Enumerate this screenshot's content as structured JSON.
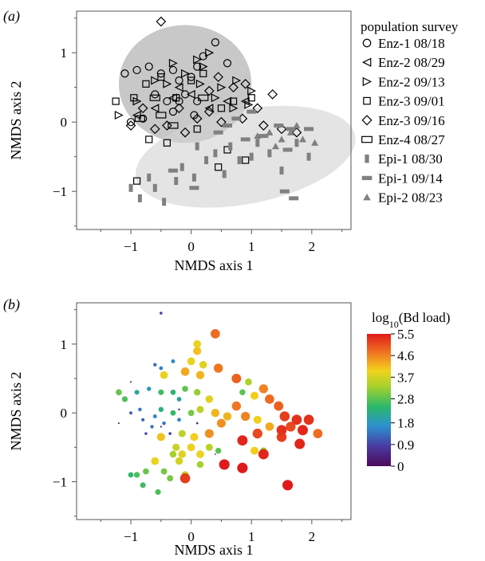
{
  "chart_data": [
    {
      "panel_label": "(a)",
      "type": "scatter",
      "xlabel": "NMDS axis 1",
      "ylabel": "NMDS axis 2",
      "xlim": [
        -1.9,
        2.65
      ],
      "ylim": [
        -1.55,
        1.6
      ],
      "x_ticks": [
        -1,
        0,
        1,
        2
      ],
      "x_tick_labels": [
        "−1",
        "0",
        "1",
        "2"
      ],
      "y_ticks": [
        -1,
        0,
        1
      ],
      "y_tick_labels": [
        "−1",
        "0",
        "1"
      ],
      "legend_title": "population survey",
      "legend_position": "right",
      "ellipses": [
        {
          "group": "enzootic",
          "center": [
            -0.1,
            0.55
          ],
          "rx": 1.1,
          "ry": 0.85,
          "angle_deg": 0,
          "color": "#9a9a9a",
          "opacity": 0.55
        },
        {
          "group": "epizootic",
          "center": [
            0.9,
            -0.5
          ],
          "rx": 1.85,
          "ry": 0.68,
          "angle_deg": 11,
          "color": "#d2d2d2",
          "opacity": 0.6
        }
      ],
      "series": [
        {
          "name": "Enz-1 08/18",
          "marker": "circle",
          "points": [
            [
              -1.1,
              0.7
            ],
            [
              -0.9,
              0.75
            ],
            [
              -0.7,
              0.8
            ],
            [
              -0.5,
              0.7
            ],
            [
              -0.3,
              0.75
            ],
            [
              -0.2,
              0.6
            ],
            [
              -0.1,
              0.4
            ],
            [
              0.0,
              0.65
            ],
            [
              0.1,
              0.8
            ],
            [
              0.2,
              0.95
            ],
            [
              0.4,
              1.15
            ],
            [
              0.6,
              0.85
            ],
            [
              -0.6,
              0.4
            ],
            [
              -0.4,
              0.3
            ],
            [
              -0.2,
              0.3
            ],
            [
              0.1,
              0.3
            ],
            [
              -1.0,
              0.0
            ],
            [
              -0.8,
              0.05
            ],
            [
              -0.3,
              0.15
            ],
            [
              0.05,
              0.1
            ]
          ]
        },
        {
          "name": "Enz-2 08/29",
          "marker": "tri-left",
          "points": [
            [
              -0.9,
              0.1
            ],
            [
              -0.6,
              0.2
            ],
            [
              -0.3,
              0.35
            ],
            [
              0.0,
              0.4
            ],
            [
              0.3,
              0.2
            ],
            [
              0.6,
              0.3
            ],
            [
              0.9,
              0.3
            ],
            [
              -0.2,
              0.5
            ]
          ]
        },
        {
          "name": "Enz-2 09/13",
          "marker": "tri-right",
          "points": [
            [
              -1.2,
              0.1
            ],
            [
              -0.9,
              0.3
            ],
            [
              -0.6,
              0.6
            ],
            [
              -0.3,
              0.85
            ],
            [
              -0.1,
              0.7
            ],
            [
              0.15,
              0.55
            ],
            [
              0.3,
              1.0
            ],
            [
              0.5,
              0.5
            ],
            [
              0.7,
              0.2
            ],
            [
              0.95,
              0.25
            ],
            [
              0.2,
              0.8
            ],
            [
              -0.4,
              0.55
            ],
            [
              0.1,
              0.9
            ],
            [
              0.4,
              0.35
            ],
            [
              0.75,
              0.6
            ],
            [
              1.0,
              0.45
            ]
          ]
        },
        {
          "name": "Enz-3 09/01",
          "marker": "square",
          "points": [
            [
              -1.25,
              0.3
            ],
            [
              -0.95,
              0.35
            ],
            [
              -0.75,
              0.55
            ],
            [
              -0.5,
              0.65
            ],
            [
              -0.25,
              0.35
            ],
            [
              0.0,
              0.6
            ],
            [
              0.2,
              0.7
            ],
            [
              0.5,
              0.2
            ],
            [
              0.7,
              0.3
            ],
            [
              1.0,
              0.35
            ],
            [
              -0.7,
              -0.25
            ],
            [
              -0.4,
              -0.3
            ],
            [
              0.1,
              -0.1
            ],
            [
              0.6,
              -0.4
            ],
            [
              0.9,
              -0.55
            ],
            [
              0.45,
              -0.65
            ],
            [
              -0.9,
              -0.85
            ]
          ]
        },
        {
          "name": "Enz-3 09/16",
          "marker": "diamond",
          "points": [
            [
              -0.5,
              1.45
            ],
            [
              -1.0,
              -0.05
            ],
            [
              -0.6,
              -0.1
            ],
            [
              -0.2,
              0.2
            ],
            [
              0.1,
              0.05
            ],
            [
              0.3,
              0.15
            ],
            [
              0.45,
              0.65
            ],
            [
              0.7,
              0.5
            ],
            [
              0.9,
              0.55
            ],
            [
              1.1,
              0.2
            ],
            [
              1.2,
              -0.05
            ],
            [
              1.5,
              -0.1
            ],
            [
              1.75,
              -0.15
            ],
            [
              -0.8,
              0.2
            ],
            [
              -0.4,
              -0.05
            ],
            [
              -0.1,
              -0.15
            ],
            [
              0.5,
              0.0
            ],
            [
              0.3,
              0.45
            ],
            [
              1.35,
              0.4
            ],
            [
              0.85,
              0.05
            ]
          ]
        },
        {
          "name": "Enz-4 08/27",
          "marker": "rect-wide",
          "points": [
            [
              -0.85,
              0.05
            ],
            [
              -0.5,
              0.1
            ],
            [
              -0.3,
              -0.05
            ],
            [
              0.2,
              0.35
            ],
            [
              -0.6,
              0.35
            ]
          ]
        },
        {
          "name": "Epi-1 08/30",
          "marker": "bar-v",
          "points": [
            [
              -1.0,
              -0.95
            ],
            [
              -0.85,
              -1.1
            ],
            [
              -0.6,
              -0.95
            ],
            [
              -0.45,
              -1.15
            ],
            [
              -0.25,
              -0.85
            ],
            [
              -0.15,
              -0.65
            ],
            [
              0.05,
              -0.8
            ],
            [
              0.25,
              -0.55
            ],
            [
              0.4,
              -0.45
            ],
            [
              0.55,
              -0.75
            ],
            [
              0.65,
              -0.35
            ],
            [
              0.8,
              -0.55
            ],
            [
              1.0,
              -0.5
            ],
            [
              1.1,
              -0.3
            ],
            [
              1.3,
              -0.45
            ],
            [
              1.5,
              -0.7
            ],
            [
              1.75,
              -0.3
            ],
            [
              1.95,
              -0.5
            ],
            [
              -0.7,
              -0.8
            ],
            [
              0.1,
              -0.35
            ]
          ]
        },
        {
          "name": "Epi-1 09/14",
          "marker": "bar-h",
          "points": [
            [
              0.6,
              -0.05
            ],
            [
              0.75,
              0.05
            ],
            [
              1.0,
              0.15
            ],
            [
              1.2,
              -0.2
            ],
            [
              1.45,
              -0.05
            ],
            [
              1.6,
              -0.4
            ],
            [
              1.65,
              -0.1
            ],
            [
              1.95,
              -0.1
            ],
            [
              0.05,
              -0.95
            ],
            [
              -0.3,
              -0.7
            ],
            [
              1.55,
              -1.0
            ],
            [
              1.7,
              -1.1
            ],
            [
              0.45,
              -0.15
            ],
            [
              0.9,
              -0.25
            ]
          ]
        },
        {
          "name": "Epi-2 08/23",
          "marker": "triangle-up",
          "points": [
            [
              1.1,
              -0.2
            ],
            [
              1.3,
              -0.15
            ],
            [
              1.5,
              -0.25
            ],
            [
              1.65,
              -0.15
            ],
            [
              1.85,
              -0.25
            ],
            [
              2.05,
              -0.3
            ],
            [
              1.75,
              -0.05
            ],
            [
              1.4,
              -0.35
            ]
          ]
        }
      ]
    },
    {
      "panel_label": "(b)",
      "type": "scatter",
      "xlabel": "NMDS axis 1",
      "ylabel": "NMDS axis 2",
      "xlim": [
        -1.9,
        2.65
      ],
      "ylim": [
        -1.55,
        1.6
      ],
      "x_ticks": [
        -1,
        0,
        1,
        2
      ],
      "x_tick_labels": [
        "−1",
        "0",
        "1",
        "2"
      ],
      "y_ticks": [
        -1,
        0,
        1
      ],
      "y_tick_labels": [
        "−1",
        "0",
        "1"
      ],
      "colorbar_title": "log",
      "colorbar_title_sub": "10",
      "colorbar_title_rest": "(Bd load)",
      "colorbar_range": [
        0,
        5.5
      ],
      "colorbar_ticks": [
        5.5,
        4.6,
        3.7,
        2.8,
        1.8,
        0.9,
        0
      ],
      "colorbar_tick_labels": [
        "5.5",
        "4.6",
        "3.7",
        "2.8",
        "1.8",
        "0.9",
        "0"
      ],
      "colorbar_position": "right",
      "points": [
        [
          -0.5,
          1.45,
          1.0
        ],
        [
          0.4,
          1.15,
          4.8
        ],
        [
          0.1,
          1.0,
          3.9
        ],
        [
          0.1,
          0.9,
          4.1
        ],
        [
          0.0,
          0.75,
          3.9
        ],
        [
          0.2,
          0.7,
          3.8
        ],
        [
          -0.3,
          0.75,
          1.6
        ],
        [
          -0.5,
          0.65,
          1.5
        ],
        [
          -0.6,
          0.7,
          1.3
        ],
        [
          -0.45,
          0.55,
          3.9
        ],
        [
          -0.1,
          0.6,
          4.3
        ],
        [
          0.15,
          0.55,
          4.2
        ],
        [
          0.45,
          0.65,
          4.7
        ],
        [
          0.75,
          0.5,
          4.9
        ],
        [
          0.95,
          0.45,
          3.4
        ],
        [
          1.05,
          0.25,
          4.0
        ],
        [
          0.85,
          0.3,
          2.8
        ],
        [
          1.2,
          0.35,
          4.6
        ],
        [
          1.3,
          0.2,
          4.8
        ],
        [
          1.45,
          0.1,
          4.9
        ],
        [
          1.55,
          -0.05,
          5.2
        ],
        [
          1.75,
          -0.1,
          5.3
        ],
        [
          1.95,
          -0.1,
          5.3
        ],
        [
          2.1,
          -0.3,
          4.8
        ],
        [
          1.65,
          -0.2,
          5.1
        ],
        [
          1.85,
          -0.25,
          5.4
        ],
        [
          1.5,
          -0.25,
          5.3
        ],
        [
          1.3,
          -0.2,
          4.3
        ],
        [
          1.1,
          -0.1,
          4.0
        ],
        [
          0.6,
          -0.05,
          4.2
        ],
        [
          0.75,
          0.1,
          4.7
        ],
        [
          0.3,
          0.2,
          3.8
        ],
        [
          0.1,
          0.3,
          3.2
        ],
        [
          -0.1,
          0.35,
          2.8
        ],
        [
          -0.3,
          0.3,
          2.4
        ],
        [
          -0.2,
          0.2,
          2.0
        ],
        [
          -0.5,
          0.3,
          2.6
        ],
        [
          -0.7,
          0.35,
          1.8
        ],
        [
          -0.9,
          0.3,
          2.1
        ],
        [
          -1.2,
          0.3,
          2.9
        ],
        [
          -1.1,
          0.2,
          2.7
        ],
        [
          -0.85,
          0.05,
          1.4
        ],
        [
          -1.0,
          0.0,
          1.1
        ],
        [
          -0.8,
          -0.1,
          1.2
        ],
        [
          -0.6,
          -0.05,
          1.6
        ],
        [
          -0.65,
          -0.2,
          1.3
        ],
        [
          -0.75,
          -0.3,
          0.9
        ],
        [
          -0.45,
          -0.15,
          1.4
        ],
        [
          -0.35,
          -0.3,
          1.0
        ],
        [
          -0.2,
          -0.1,
          1.5
        ],
        [
          0.0,
          0.0,
          3.0
        ],
        [
          0.15,
          0.05,
          3.5
        ],
        [
          0.4,
          0.0,
          4.2
        ],
        [
          -0.5,
          0.05,
          2.3
        ],
        [
          -0.3,
          0.0,
          2.5
        ],
        [
          0.05,
          -0.35,
          4.0
        ],
        [
          0.3,
          -0.3,
          4.5
        ],
        [
          0.5,
          -0.15,
          4.5
        ],
        [
          0.9,
          -0.05,
          4.6
        ],
        [
          1.1,
          -0.3,
          5.1
        ],
        [
          0.85,
          -0.4,
          5.4
        ],
        [
          1.2,
          -0.6,
          5.4
        ],
        [
          1.5,
          -0.35,
          5.2
        ],
        [
          1.8,
          -0.45,
          5.4
        ],
        [
          1.05,
          -0.55,
          4.0
        ],
        [
          1.2,
          -0.55,
          3.2
        ],
        [
          0.55,
          -0.75,
          5.5
        ],
        [
          0.3,
          -0.5,
          3.5
        ],
        [
          -0.15,
          -0.3,
          3.5
        ],
        [
          -0.5,
          -0.35,
          4.1
        ],
        [
          -0.3,
          -0.6,
          3.3
        ],
        [
          -0.2,
          -0.7,
          3.7
        ],
        [
          -0.6,
          -0.7,
          3.9
        ],
        [
          -0.45,
          -0.85,
          3.0
        ],
        [
          -0.75,
          -0.85,
          2.9
        ],
        [
          -0.9,
          -0.9,
          2.7
        ],
        [
          -1.0,
          -0.9,
          2.5
        ],
        [
          -0.8,
          -1.05,
          2.6
        ],
        [
          -0.55,
          -1.15,
          2.7
        ],
        [
          -0.35,
          -0.95,
          3.0
        ],
        [
          -0.1,
          -0.9,
          3.6
        ],
        [
          -0.15,
          -0.6,
          3.8
        ],
        [
          0.15,
          -0.6,
          3.9
        ],
        [
          0.0,
          -0.5,
          3.9
        ],
        [
          0.85,
          -0.8,
          5.5
        ],
        [
          1.6,
          -1.05,
          5.5
        ],
        [
          -0.1,
          -0.95,
          5.2
        ],
        [
          0.15,
          -0.75,
          3.3
        ],
        [
          -0.25,
          -0.5,
          3.6
        ],
        [
          0.45,
          -0.55,
          2.8
        ],
        [
          0.1,
          -0.15,
          0.5
        ],
        [
          -0.2,
          0.05,
          0.4
        ],
        [
          -0.5,
          -0.2,
          0.3
        ],
        [
          -1.2,
          -0.15,
          0.2
        ],
        [
          -1.0,
          0.45,
          0.2
        ],
        [
          0.4,
          -0.6,
          0.1
        ]
      ]
    }
  ]
}
